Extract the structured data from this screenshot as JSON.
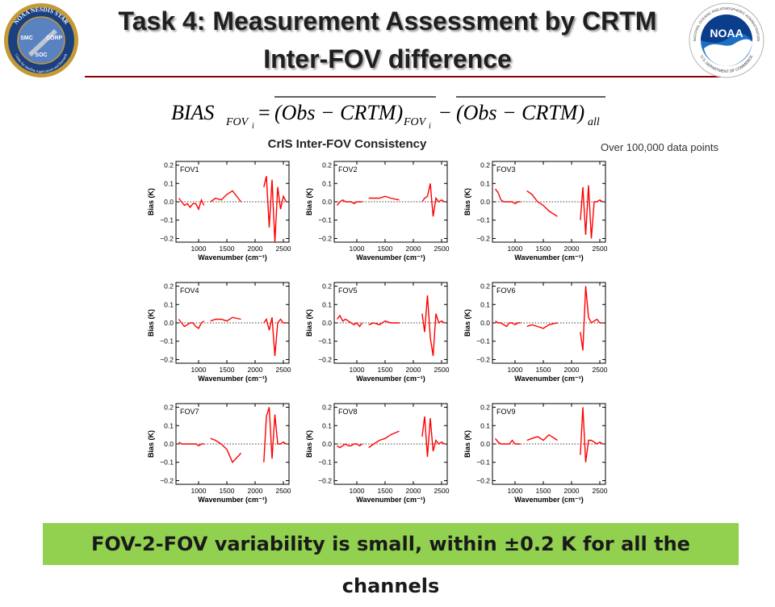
{
  "slide": {
    "title_line1": "Task 4: Measurement Assessment by CRTM",
    "title_line2": "Inter-FOV difference",
    "note": "Over 100,000 data points",
    "conclusion": "FOV-2-FOV variability is small, within ±0.2 K for all the channels",
    "accent_color": "#8b0000",
    "banner_color": "#92d050"
  },
  "logos": {
    "left": {
      "icon": "noaa-nesdis-star-seal",
      "ring_text": "NOAA NESDIS STAR",
      "lower_text": "Center for Satellite Applications and Research",
      "labels": [
        "SMC",
        "CORP",
        "SOC"
      ]
    },
    "right": {
      "icon": "noaa-logo",
      "wordmark": "NOAA",
      "ring_text": "NATIONAL OCEANIC AND ATMOSPHERIC ADMINISTRATION",
      "lower_text": "U.S. DEPARTMENT OF COMMERCE"
    }
  },
  "formula": {
    "lhs": "BIAS",
    "lhs_sub": "FOV",
    "lhs_subsub": "i",
    "term1": "(Obs − CRTM)",
    "term1_sub": "FOV",
    "term1_subsub": "i",
    "term2": "(Obs − CRTM)",
    "term2_sub": "all"
  },
  "chart_data": {
    "type": "line",
    "title": "CrIS Inter-FOV Consistency",
    "xlabel": "Wavenumber (cm⁻¹)",
    "ylabel": "Bias (K)",
    "xlim": [
      600,
      2600
    ],
    "ylim": [
      -0.22,
      0.22
    ],
    "xticks": [
      1000,
      1500,
      2000,
      2500
    ],
    "yticks": [
      -0.2,
      -0.1,
      0.0,
      0.1,
      0.2
    ],
    "ytick_labels": [
      "−0.2",
      "−0.1",
      "0.0",
      "0.1",
      "0.2"
    ],
    "zero_line": "dotted",
    "line_color": "#ff0000",
    "bands": [
      [
        650,
        1095
      ],
      [
        1210,
        1750
      ],
      [
        2155,
        2550
      ]
    ],
    "panels": [
      {
        "label": "FOV1",
        "series": {
          "x": [
            650,
            700,
            750,
            800,
            850,
            900,
            950,
            1000,
            1050,
            1095,
            1210,
            1300,
            1400,
            1500,
            1600,
            1750,
            2155,
            2200,
            2250,
            2300,
            2350,
            2400,
            2450,
            2500,
            2550
          ],
          "y": [
            0.02,
            0.0,
            -0.02,
            -0.01,
            -0.03,
            -0.01,
            -0.01,
            -0.04,
            0.01,
            -0.02,
            0.0,
            0.02,
            0.01,
            0.04,
            0.06,
            0.0,
            0.08,
            0.14,
            -0.14,
            0.12,
            -0.22,
            0.08,
            -0.04,
            0.03,
            0.0
          ]
        }
      },
      {
        "label": "FOV2",
        "series": {
          "x": [
            650,
            700,
            750,
            800,
            850,
            900,
            950,
            1000,
            1050,
            1095,
            1210,
            1300,
            1400,
            1500,
            1600,
            1750,
            2155,
            2200,
            2250,
            2300,
            2350,
            2400,
            2450,
            2500,
            2550
          ],
          "y": [
            -0.02,
            0.0,
            0.01,
            0.0,
            0.0,
            0.0,
            -0.01,
            0.0,
            0.0,
            0.0,
            0.02,
            0.02,
            0.02,
            0.03,
            0.02,
            0.01,
            0.0,
            0.02,
            0.03,
            0.1,
            -0.08,
            0.02,
            0.0,
            0.01,
            0.0
          ]
        }
      },
      {
        "label": "FOV3",
        "series": {
          "x": [
            650,
            700,
            750,
            800,
            850,
            900,
            950,
            1000,
            1050,
            1095,
            1210,
            1300,
            1400,
            1500,
            1600,
            1750,
            2155,
            2200,
            2250,
            2300,
            2350,
            2400,
            2450,
            2500,
            2550
          ],
          "y": [
            0.07,
            0.05,
            0.01,
            0.0,
            0.0,
            0.0,
            0.0,
            -0.01,
            0.0,
            0.0,
            0.06,
            0.04,
            0.0,
            -0.02,
            -0.05,
            -0.08,
            -0.1,
            0.08,
            -0.18,
            0.09,
            -0.2,
            0.0,
            0.0,
            0.01,
            0.0
          ]
        }
      },
      {
        "label": "FOV4",
        "series": {
          "x": [
            650,
            700,
            750,
            800,
            850,
            900,
            950,
            1000,
            1050,
            1095,
            1210,
            1300,
            1400,
            1500,
            1600,
            1750,
            2155,
            2200,
            2250,
            2300,
            2350,
            2400,
            2450,
            2500,
            2550
          ],
          "y": [
            0.02,
            0.0,
            -0.02,
            -0.01,
            0.0,
            0.0,
            -0.02,
            -0.03,
            0.0,
            0.01,
            0.01,
            0.02,
            0.02,
            0.01,
            0.03,
            0.02,
            0.0,
            0.02,
            -0.04,
            0.03,
            -0.18,
            0.0,
            0.02,
            0.0,
            0.0
          ]
        }
      },
      {
        "label": "FOV5",
        "series": {
          "x": [
            650,
            700,
            750,
            800,
            850,
            900,
            950,
            1000,
            1050,
            1095,
            1210,
            1300,
            1400,
            1500,
            1600,
            1750,
            2155,
            2200,
            2250,
            2300,
            2350,
            2400,
            2450,
            2500,
            2550
          ],
          "y": [
            0.02,
            0.04,
            0.01,
            0.02,
            0.01,
            0.0,
            -0.01,
            0.0,
            -0.02,
            0.0,
            -0.01,
            0.0,
            -0.01,
            0.01,
            0.0,
            0.0,
            0.05,
            -0.05,
            0.15,
            -0.08,
            -0.18,
            0.05,
            0.0,
            0.01,
            0.0
          ]
        }
      },
      {
        "label": "FOV6",
        "series": {
          "x": [
            650,
            700,
            750,
            800,
            850,
            900,
            950,
            1000,
            1050,
            1095,
            1210,
            1300,
            1400,
            1500,
            1600,
            1750,
            2155,
            2200,
            2250,
            2300,
            2350,
            2400,
            2450,
            2500,
            2550
          ],
          "y": [
            0.01,
            0.0,
            0.0,
            -0.01,
            -0.02,
            0.0,
            0.0,
            -0.01,
            0.0,
            0.0,
            -0.02,
            -0.01,
            -0.02,
            -0.03,
            -0.01,
            0.0,
            -0.05,
            -0.15,
            0.2,
            0.03,
            0.0,
            0.01,
            0.02,
            0.0,
            0.0
          ]
        }
      },
      {
        "label": "FOV7",
        "series": {
          "x": [
            650,
            700,
            750,
            800,
            850,
            900,
            950,
            1000,
            1050,
            1095,
            1210,
            1300,
            1400,
            1500,
            1600,
            1750,
            2155,
            2200,
            2250,
            2300,
            2350,
            2400,
            2450,
            2500,
            2550
          ],
          "y": [
            0.01,
            0.0,
            0.0,
            0.0,
            0.0,
            0.0,
            0.0,
            -0.01,
            0.0,
            0.0,
            0.03,
            0.02,
            0.0,
            -0.03,
            -0.1,
            -0.05,
            -0.1,
            0.15,
            0.2,
            -0.08,
            0.16,
            0.0,
            0.0,
            0.01,
            0.0
          ]
        }
      },
      {
        "label": "FOV8",
        "series": {
          "x": [
            650,
            700,
            750,
            800,
            850,
            900,
            950,
            1000,
            1050,
            1095,
            1210,
            1300,
            1400,
            1500,
            1600,
            1750,
            2155,
            2200,
            2250,
            2300,
            2350,
            2400,
            2450,
            2500,
            2550
          ],
          "y": [
            -0.01,
            -0.02,
            -0.01,
            0.0,
            -0.01,
            -0.01,
            0.0,
            0.0,
            -0.01,
            0.0,
            -0.02,
            0.0,
            0.02,
            0.03,
            0.05,
            0.07,
            0.04,
            0.15,
            -0.07,
            0.14,
            -0.04,
            0.02,
            0.0,
            0.01,
            0.0
          ]
        }
      },
      {
        "label": "FOV9",
        "series": {
          "x": [
            650,
            700,
            750,
            800,
            850,
            900,
            950,
            1000,
            1050,
            1095,
            1210,
            1300,
            1400,
            1500,
            1600,
            1750,
            2155,
            2200,
            2250,
            2300,
            2350,
            2400,
            2450,
            2500,
            2550
          ],
          "y": [
            0.03,
            0.01,
            0.0,
            0.0,
            0.0,
            0.0,
            0.02,
            0.0,
            0.0,
            0.0,
            0.02,
            0.03,
            0.04,
            0.02,
            0.05,
            0.02,
            -0.06,
            0.2,
            -0.1,
            0.02,
            0.02,
            0.01,
            0.0,
            0.01,
            0.0
          ]
        }
      }
    ]
  }
}
